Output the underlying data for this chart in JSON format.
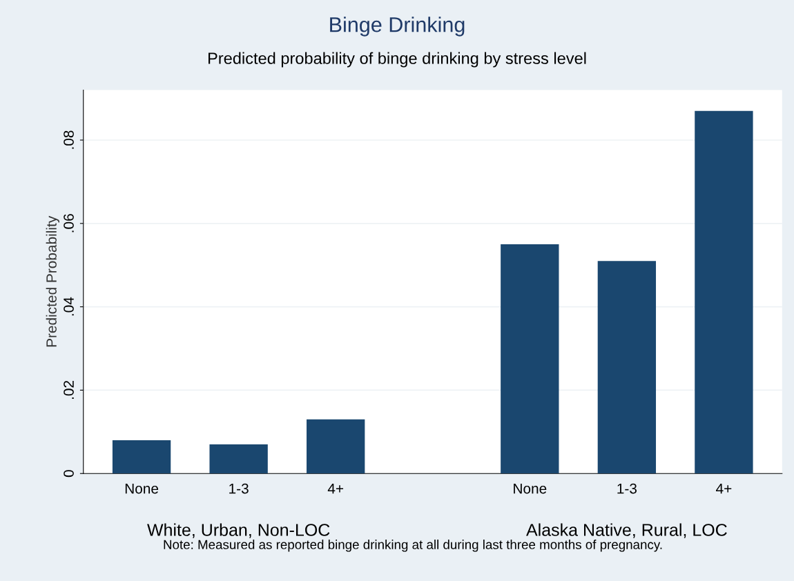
{
  "chart_data": {
    "type": "bar",
    "title": "Binge Drinking",
    "subtitle": "Predicted probability of binge drinking by stress level",
    "ylabel": "Predicted Probability",
    "categories": [
      "None",
      "1-3",
      "4+",
      null,
      "None",
      "1-3",
      "4+"
    ],
    "values": [
      0.008,
      0.007,
      0.013,
      null,
      0.055,
      0.051,
      0.087
    ],
    "color": "#1a476f",
    "ylim": [
      0,
      0.092
    ],
    "yticks": [
      0,
      {
        "value": 0.02,
        "label": ".02"
      },
      {
        "value": 0.04,
        "label": ".04"
      },
      {
        "value": 0.06,
        "label": ".06"
      },
      {
        "value": 0.08,
        "label": ".08"
      }
    ],
    "grid": "y",
    "annotations": [
      "White, Urban, Non-LOC",
      "Alaska Native, Rural, LOC",
      "Note: Measured as reported binge drinking at all during last three months of pregnancy."
    ]
  }
}
